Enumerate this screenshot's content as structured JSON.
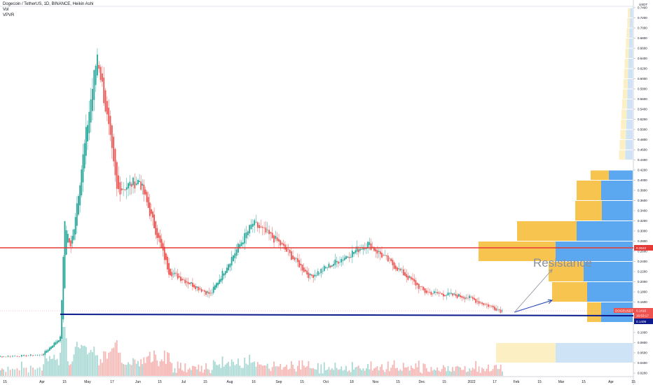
{
  "header": {
    "symbol_line": "Dogecoin / TetherUS, 1D, BINANCE, Heikin Ashi",
    "indicator_1": "Vol",
    "indicator_2": "VPVR"
  },
  "price_axis": {
    "unit": "USDT",
    "ticks": [
      "0.7400",
      "0.7200",
      "0.7000",
      "0.6800",
      "0.6600",
      "0.6400",
      "0.6200",
      "0.6000",
      "0.5800",
      "0.5600",
      "0.5400",
      "0.5200",
      "0.5000",
      "0.4800",
      "0.4600",
      "0.4400",
      "0.4200",
      "0.4000",
      "0.3800",
      "0.3600",
      "0.3400",
      "0.3200",
      "0.3000",
      "0.2800",
      "0.2600",
      "0.2400",
      "0.2200",
      "0.2000",
      "0.1800",
      "0.1600",
      "0.1400",
      "0.1200",
      "0.1000",
      "0.0800",
      "0.0600",
      "0.0400",
      "0.0200"
    ]
  },
  "time_axis": {
    "ticks": [
      "15",
      "Apr",
      "15",
      "May",
      "17",
      "Jun",
      "15",
      "Jul",
      "15",
      "Aug",
      "16",
      "Sep",
      "15",
      "Oct",
      "18",
      "Nov",
      "15",
      "Dec",
      "15",
      "2022",
      "17",
      "Feb",
      "15",
      "Mar",
      "15",
      "Apr",
      "15"
    ]
  },
  "tags": {
    "resistance_price": "0.2642",
    "symbol": "DOGEUSDT",
    "last_price": "0.1410",
    "countdown": "16:53:17",
    "support_price": "0.1409"
  },
  "annotations": {
    "resistance_text": "Resistance"
  },
  "colors": {
    "up": "#26a69a",
    "down": "#ef5350",
    "resistance_line": "#e53935",
    "support_line": "#0d1b8c",
    "vp_up": "#5ba8f0",
    "vp_down": "#f7c44f",
    "vp_up_light": "#cfe3f7",
    "vp_down_light": "#fdefc4"
  },
  "chart_data": {
    "type": "candlestick",
    "style": "Heikin Ashi",
    "interval": "1D",
    "exchange": "BINANCE",
    "ylim": [
      0.0,
      0.75
    ],
    "horizontal_lines": [
      {
        "label": "resistance",
        "value": 0.2642
      },
      {
        "label": "support",
        "value": 0.1409
      }
    ],
    "price_path": [
      {
        "date": "2021-03-01",
        "close": 0.05
      },
      {
        "date": "2021-04-01",
        "close": 0.056
      },
      {
        "date": "2021-04-13",
        "close": 0.09
      },
      {
        "date": "2021-04-16",
        "close": 0.32
      },
      {
        "date": "2021-04-20",
        "close": 0.265
      },
      {
        "date": "2021-05-07",
        "close": 0.65
      },
      {
        "date": "2021-05-14",
        "close": 0.5
      },
      {
        "date": "2021-05-19",
        "close": 0.38
      },
      {
        "date": "2021-06-02",
        "close": 0.4
      },
      {
        "date": "2021-06-22",
        "close": 0.22
      },
      {
        "date": "2021-07-20",
        "close": 0.175
      },
      {
        "date": "2021-08-16",
        "close": 0.315
      },
      {
        "date": "2021-08-31",
        "close": 0.28
      },
      {
        "date": "2021-09-21",
        "close": 0.21
      },
      {
        "date": "2021-10-28",
        "close": 0.275
      },
      {
        "date": "2021-12-04",
        "close": 0.18
      },
      {
        "date": "2021-12-31",
        "close": 0.17
      },
      {
        "date": "2022-01-24",
        "close": 0.141
      }
    ],
    "volume_profile": [
      {
        "price_low": 0.4,
        "price_high": 0.42,
        "buy": 0.034,
        "sell": 0.026
      },
      {
        "price_low": 0.36,
        "price_high": 0.4,
        "buy": 0.045,
        "sell": 0.035
      },
      {
        "price_low": 0.32,
        "price_high": 0.36,
        "buy": 0.044,
        "sell": 0.038
      },
      {
        "price_low": 0.28,
        "price_high": 0.32,
        "buy": 0.08,
        "sell": 0.085
      },
      {
        "price_low": 0.24,
        "price_high": 0.28,
        "buy": 0.11,
        "sell": 0.11
      },
      {
        "price_low": 0.2,
        "price_high": 0.24,
        "buy": 0.07,
        "sell": 0.05
      },
      {
        "price_low": 0.16,
        "price_high": 0.2,
        "buy": 0.065,
        "sell": 0.05
      },
      {
        "price_low": 0.12,
        "price_high": 0.16,
        "buy": 0.045,
        "sell": 0.02
      },
      {
        "price_low": 0.04,
        "price_high": 0.08,
        "buy": 0.11,
        "sell": 0.085
      }
    ]
  }
}
